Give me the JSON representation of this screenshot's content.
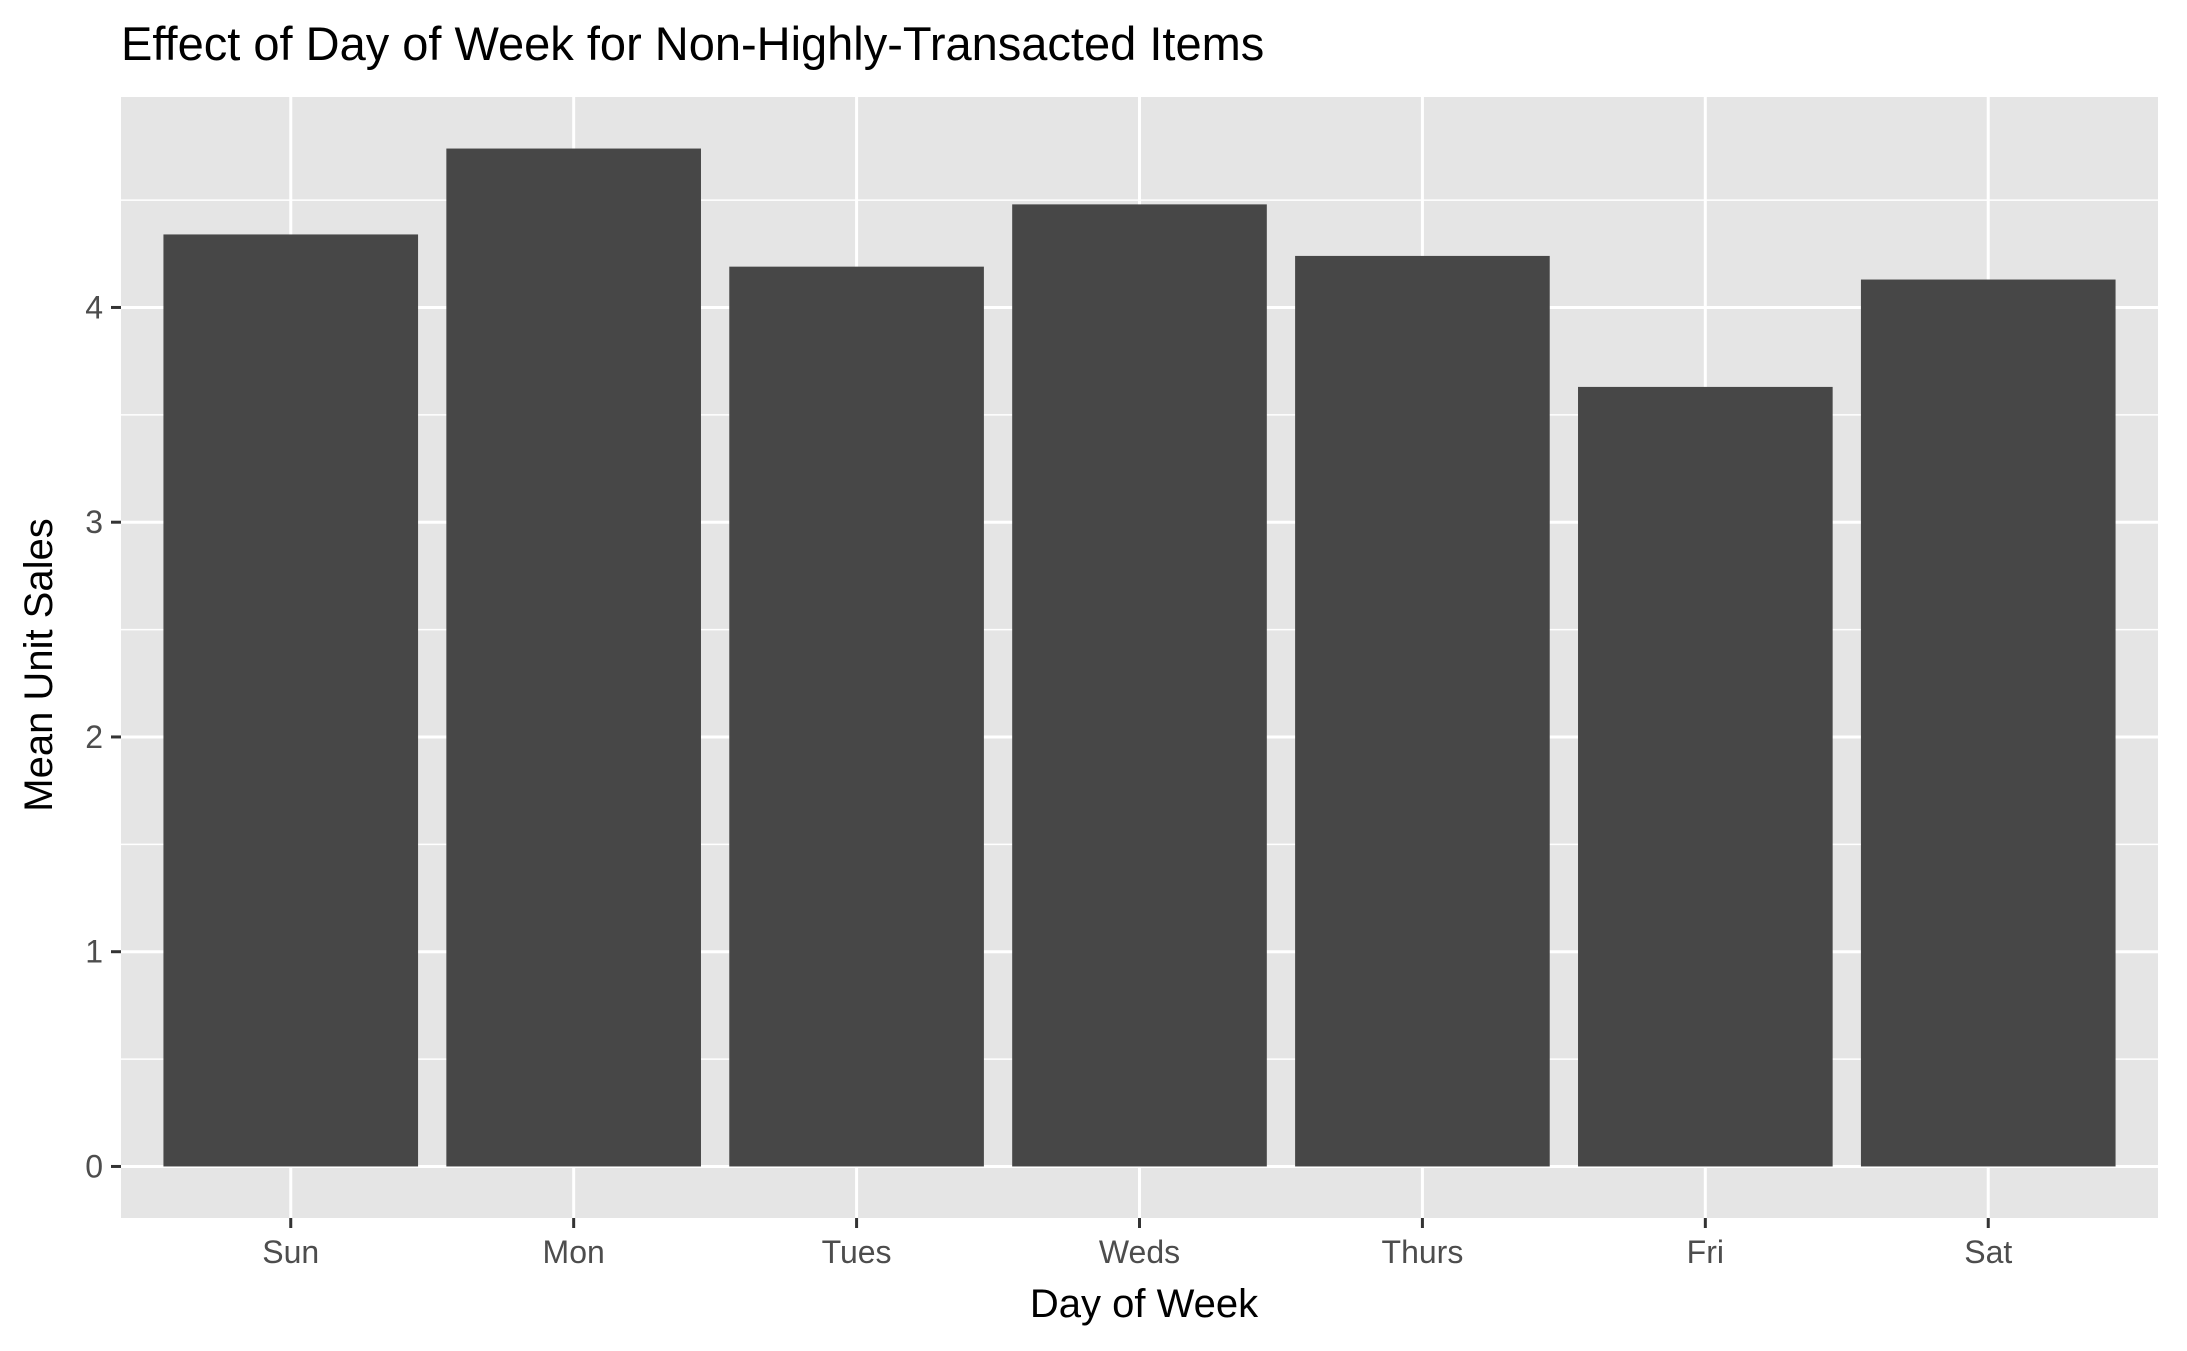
{
  "chart_data": {
    "type": "bar",
    "title": "Effect of Day of Week for Non-Highly-Transacted Items",
    "xlabel": "Day of Week",
    "ylabel": "Mean Unit Sales",
    "categories": [
      "Sun",
      "Mon",
      "Tues",
      "Weds",
      "Thurs",
      "Fri",
      "Sat"
    ],
    "values": [
      4.34,
      4.74,
      4.19,
      4.48,
      4.24,
      3.63,
      4.13
    ],
    "ylim": [
      -0.24,
      4.98
    ],
    "yticks": [
      0,
      1,
      2,
      3,
      4
    ],
    "grid": true,
    "colors": {
      "bar": "#474747",
      "panel": "#e5e5e5",
      "grid": "#ffffff",
      "tick": "#333333"
    }
  }
}
